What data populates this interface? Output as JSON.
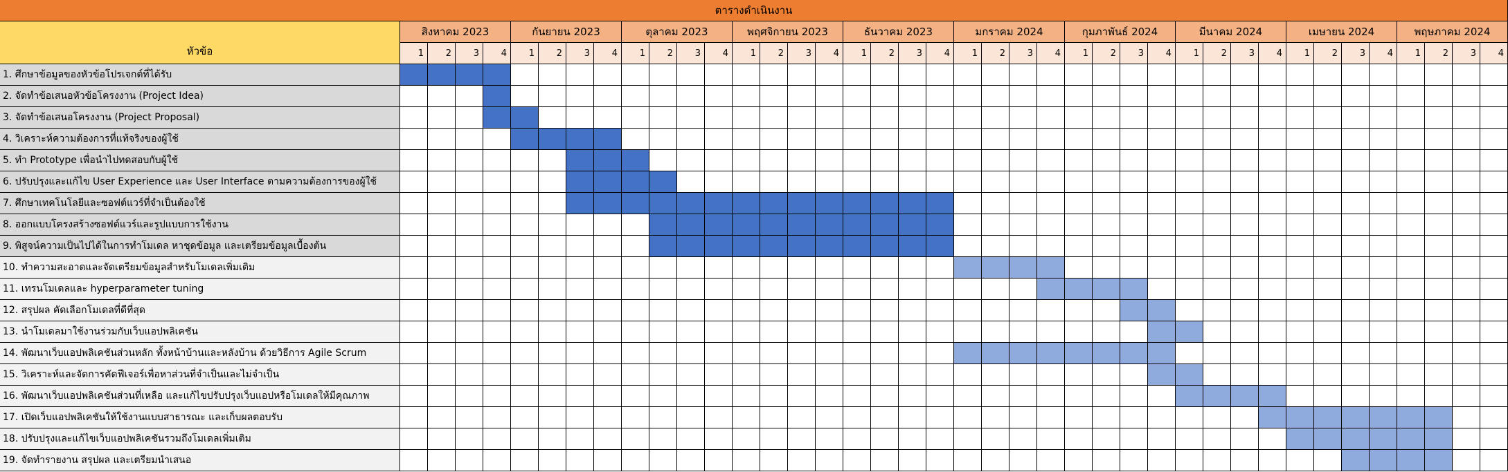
{
  "chart_data": {
    "type": "table",
    "title": "ตารางดำเนินงาน",
    "task_column_header": "หัวข้อ",
    "months": [
      "สิงหาคม 2023",
      "กันยายน 2023",
      "ตุลาคม 2023",
      "พฤศจิกายน 2023",
      "ธันวาคม 2023",
      "มกราคม 2024",
      "กุมภาพันธ์ 2024",
      "มีนาคม 2024",
      "เมษายน 2024",
      "พฤษภาคม 2024"
    ],
    "week_labels": [
      "1",
      "2",
      "3",
      "4"
    ],
    "colors": {
      "phase1": "#4472C4",
      "phase2": "#8FAADC"
    },
    "tasks": [
      {
        "label": "1. ศึกษาข้อมูลของหัวข้อโปรเจกต์ที่ได้รับ",
        "phase": 1,
        "start_week": 1,
        "end_week": 4
      },
      {
        "label": "2. จัดทำข้อเสนอหัวข้อโครงงาน (Project Idea)",
        "phase": 1,
        "start_week": 4,
        "end_week": 4
      },
      {
        "label": "3. จัดทำข้อเสนอโครงงาน (Project Proposal)",
        "phase": 1,
        "start_week": 4,
        "end_week": 5
      },
      {
        "label": "4. วิเคราะห์ความต้องการที่แท้จริงของผู้ใช้",
        "phase": 1,
        "start_week": 5,
        "end_week": 8
      },
      {
        "label": "5. ทำ Prototype เพื่อนำไปทดสอบกับผู้ใช้",
        "phase": 1,
        "start_week": 7,
        "end_week": 9
      },
      {
        "label": "6. ปรับปรุงและแก้ไข User Experience และ User Interface ตามความต้องการของผู้ใช้",
        "phase": 1,
        "start_week": 7,
        "end_week": 10
      },
      {
        "label": "7. ศึกษาเทคโนโลยีและซอฟต์แวร์ที่จำเป็นต้องใช้",
        "phase": 1,
        "start_week": 7,
        "end_week": 20
      },
      {
        "label": "8. ออกแบบโครงสร้างซอฟต์แวร์และรูปแบบการใช้งาน",
        "phase": 1,
        "start_week": 10,
        "end_week": 20
      },
      {
        "label": "9. พิสูจน์ความเป็นไปได้ในการทำโมเดล หาชุดข้อมูล และเตรียมข้อมูลเบื้องต้น",
        "phase": 1,
        "start_week": 10,
        "end_week": 20
      },
      {
        "label": "10. ทำความสะอาดและจัดเตรียมข้อมูลสำหรับโมเดลเพิ่มเติม",
        "phase": 2,
        "start_week": 21,
        "end_week": 24
      },
      {
        "label": "11. เทรนโมเดลและ hyperparameter tuning",
        "phase": 2,
        "start_week": 24,
        "end_week": 27
      },
      {
        "label": "12. สรุปผล คัดเลือกโมเดลที่ดีที่สุด",
        "phase": 2,
        "start_week": 27,
        "end_week": 28
      },
      {
        "label": "13. นำโมเดลมาใช้งานร่วมกับเว็บแอปพลิเคชัน",
        "phase": 2,
        "start_week": 28,
        "end_week": 29
      },
      {
        "label": "14. พัฒนาเว็บแอปพลิเคชันส่วนหลัก ทั้งหน้าบ้านและหลังบ้าน ด้วยวิธีการ Agile Scrum",
        "phase": 2,
        "start_week": 21,
        "end_week": 28
      },
      {
        "label": "15. วิเคราะห์และจัดการคัดฟีเจอร์เพื่อหาส่วนที่จำเป็นและไม่จำเป็น",
        "phase": 2,
        "start_week": 28,
        "end_week": 29
      },
      {
        "label": "16. พัฒนาเว็บแอปพลิเคชันส่วนที่เหลือ และแก้ไขปรับปรุงเว็บแอปหรือโมเดลให้มีคุณภาพ",
        "phase": 2,
        "start_week": 29,
        "end_week": 32
      },
      {
        "label": "17. เปิดเว็บแอปพลิเคชันให้ใช้งานแบบสาธารณะ และเก็บผลตอบรับ",
        "phase": 2,
        "start_week": 32,
        "end_week": 38
      },
      {
        "label": "18. ปรับปรุงและแก้ไขเว็บแอปพลิเคชันรวมถึงโมเดลเพิ่มเติม",
        "phase": 2,
        "start_week": 33,
        "end_week": 38
      },
      {
        "label": "19. จัดทำรายงาน สรุปผล และเตรียมนำเสนอ",
        "phase": 2,
        "start_week": 35,
        "end_week": 38
      }
    ]
  }
}
